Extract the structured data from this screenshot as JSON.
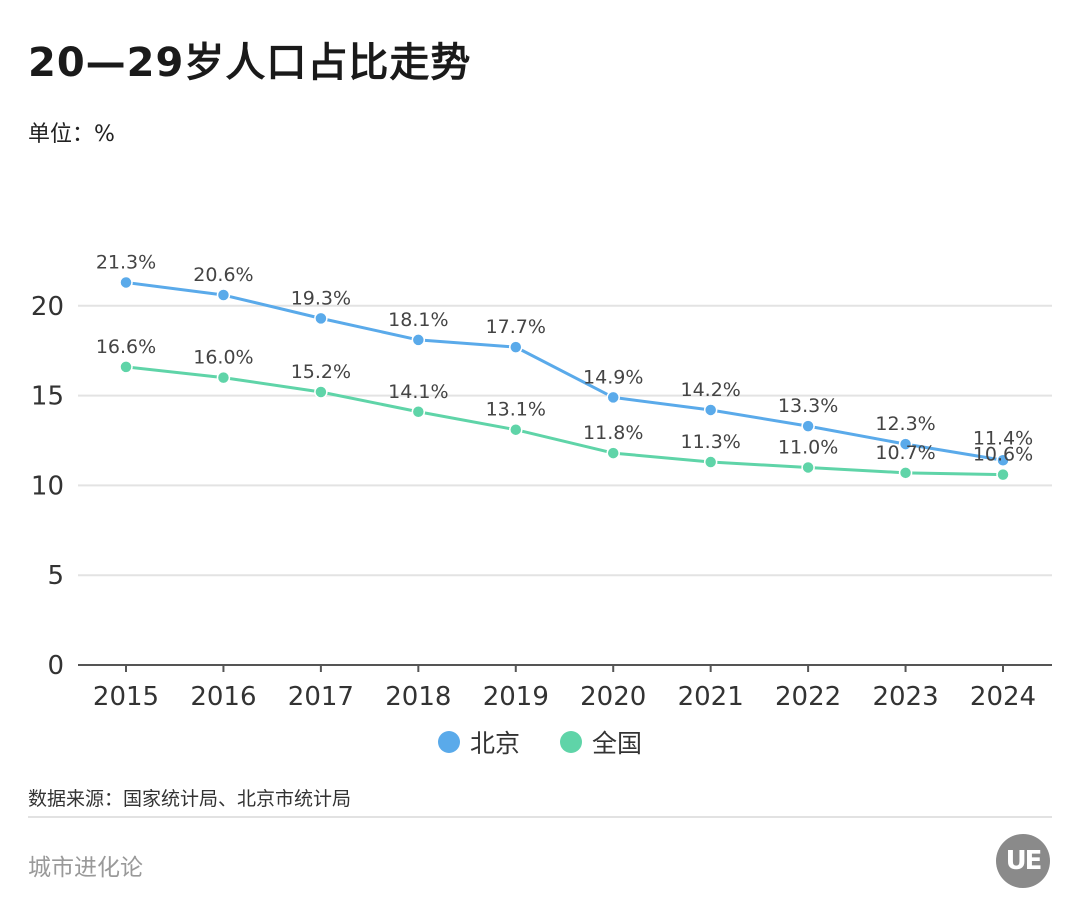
{
  "title": "20—29岁人口占比走势",
  "unit_label": "单位：%",
  "source": "数据来源：国家统计局、北京市统计局",
  "brand": "城市进化论",
  "logo_text": "UE",
  "colors": {
    "beijing": "#5aaaea",
    "national": "#5fd4a8",
    "grid": "#e3e3e3",
    "axis": "#555555"
  },
  "chart_data": {
    "type": "line",
    "categories": [
      "2015",
      "2016",
      "2017",
      "2018",
      "2019",
      "2020",
      "2021",
      "2022",
      "2023",
      "2024"
    ],
    "ylim": [
      0,
      25
    ],
    "yticks": [
      0,
      5,
      10,
      15,
      20
    ],
    "grid": true,
    "legend_position": "bottom",
    "series": [
      {
        "name": "北京",
        "color": "#5aaaea",
        "values": [
          21.3,
          20.6,
          19.3,
          18.1,
          17.7,
          14.9,
          14.2,
          13.3,
          12.3,
          11.4
        ],
        "labels": [
          "21.3%",
          "20.6%",
          "19.3%",
          "18.1%",
          "17.7%",
          "14.9%",
          "14.2%",
          "13.3%",
          "12.3%",
          "11.4%"
        ]
      },
      {
        "name": "全国",
        "color": "#5fd4a8",
        "values": [
          16.6,
          16.0,
          15.2,
          14.1,
          13.1,
          11.8,
          11.3,
          11.0,
          10.7,
          10.6
        ],
        "labels": [
          "16.6%",
          "16.0%",
          "15.2%",
          "14.1%",
          "13.1%",
          "11.8%",
          "11.3%",
          "11.0%",
          "10.7%",
          "10.6%"
        ]
      }
    ]
  }
}
